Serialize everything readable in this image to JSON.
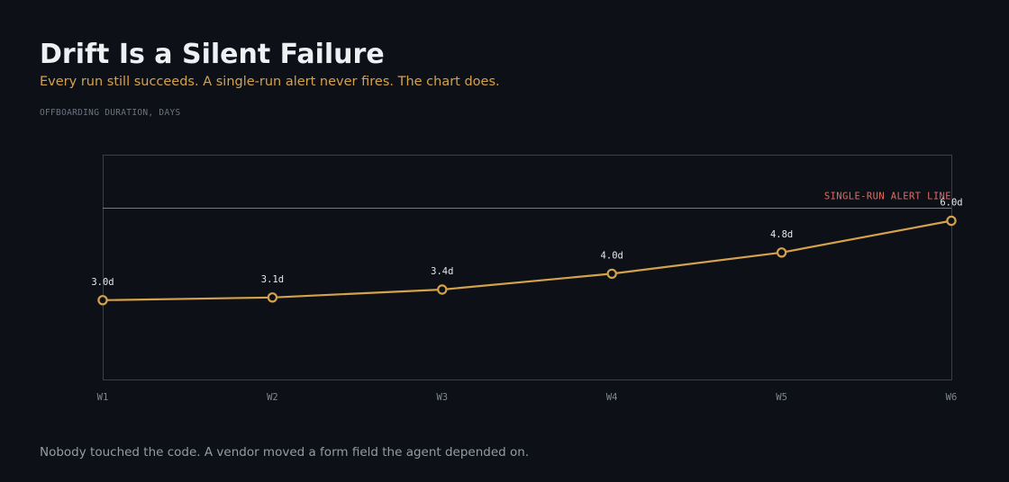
{
  "header": {
    "title": "Drift Is a Silent Failure",
    "subtitle": "Every run still succeeds. A single-run alert never fires. The chart does."
  },
  "footer": {
    "note": "Nobody touched the code. A vendor moved a form field the agent depended on."
  },
  "colors": {
    "background": "#0d1017",
    "line": "#d4a24a",
    "point_fill": "#0d1017",
    "threshold": "#e06b63",
    "frame": "#3a3f48",
    "tick_text": "#80868f",
    "data_label": "#e6e8ec"
  },
  "chart_data": {
    "type": "line",
    "ylabel": "OFFBOARDING DURATION, DAYS",
    "categories": [
      "W1",
      "W2",
      "W3",
      "W4",
      "W5",
      "W6"
    ],
    "series": [
      {
        "values": [
          3.0,
          3.1,
          3.4,
          4.0,
          4.8,
          6.0
        ],
        "data_labels": [
          "3.0d",
          "3.1d",
          "3.4d",
          "4.0d",
          "4.8d",
          "6.0d"
        ]
      }
    ],
    "threshold": {
      "label": "SINGLE-RUN ALERT LINE",
      "value": 6.5
    },
    "ylim": [
      0,
      8.5
    ],
    "grid": false,
    "legend": "none"
  }
}
